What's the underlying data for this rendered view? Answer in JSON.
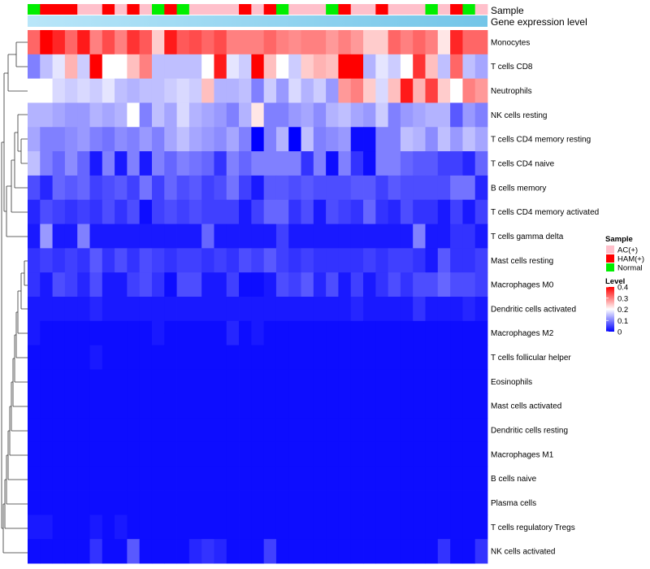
{
  "chart_data": {
    "type": "heatmap",
    "title": "",
    "annotation_titles": {
      "sample": "Sample",
      "gene_expression": "Gene expression level"
    },
    "annotation_colors": {
      "gene_expression_low": "#b9e6f9",
      "gene_expression_high": "#73c5e8"
    },
    "sample_groups": [
      "Normal",
      "HAM(+)",
      "HAM(+)",
      "HAM(+)",
      "AC(+)",
      "AC(+)",
      "HAM(+)",
      "AC(+)",
      "HAM(+)",
      "AC(+)",
      "Normal",
      "HAM(+)",
      "Normal",
      "AC(+)",
      "AC(+)",
      "AC(+)",
      "AC(+)",
      "HAM(+)",
      "AC(+)",
      "HAM(+)",
      "Normal",
      "AC(+)",
      "AC(+)",
      "AC(+)",
      "Normal",
      "HAM(+)",
      "AC(+)",
      "AC(+)",
      "HAM(+)",
      "AC(+)",
      "AC(+)",
      "AC(+)",
      "Normal",
      "AC(+)",
      "HAM(+)",
      "Normal",
      "AC(+)"
    ],
    "rows": [
      "Monocytes",
      "T cells CD8",
      "Neutrophils",
      "NK cells resting",
      "T cells CD4 memory resting",
      "T cells CD4 naive",
      "B cells memory",
      "T cells CD4 memory activated",
      "T cells gamma delta",
      "Mast cells resting",
      "Macrophages M0",
      "Dendritic cells activated",
      "Macrophages M2",
      "T cells follicular helper",
      "Eosinophils",
      "Mast cells activated",
      "Dendritic cells resting",
      "Macrophages M1",
      "B cells naive",
      "Plasma cells",
      "T cells regulatory  Tregs",
      "NK cells activated"
    ],
    "values": [
      [
        0.32,
        0.4,
        0.37,
        0.32,
        0.38,
        0.3,
        0.34,
        0.3,
        0.36,
        0.33,
        0.24,
        0.38,
        0.33,
        0.34,
        0.32,
        0.34,
        0.3,
        0.3,
        0.3,
        0.32,
        0.3,
        0.29,
        0.3,
        0.3,
        0.28,
        0.3,
        0.28,
        0.24,
        0.24,
        0.32,
        0.3,
        0.32,
        0.3,
        0.22,
        0.37,
        0.32,
        0.32
      ],
      [
        0.1,
        0.15,
        0.18,
        0.26,
        0.16,
        0.4,
        0.2,
        0.2,
        0.25,
        0.3,
        0.15,
        0.15,
        0.15,
        0.15,
        0.2,
        0.38,
        0.18,
        0.16,
        0.4,
        0.25,
        0.2,
        0.16,
        0.24,
        0.26,
        0.25,
        0.4,
        0.4,
        0.14,
        0.18,
        0.16,
        0.2,
        0.36,
        0.25,
        0.15,
        0.32,
        0.15,
        0.13
      ],
      [
        0.2,
        0.2,
        0.17,
        0.16,
        0.17,
        0.16,
        0.18,
        0.15,
        0.14,
        0.15,
        0.15,
        0.16,
        0.17,
        0.16,
        0.25,
        0.14,
        0.14,
        0.15,
        0.1,
        0.16,
        0.12,
        0.17,
        0.14,
        0.16,
        0.12,
        0.28,
        0.3,
        0.24,
        0.17,
        0.25,
        0.38,
        0.26,
        0.35,
        0.24,
        0.2,
        0.3,
        0.28
      ],
      [
        0.14,
        0.14,
        0.13,
        0.12,
        0.12,
        0.14,
        0.13,
        0.14,
        0.2,
        0.1,
        0.15,
        0.13,
        0.17,
        0.14,
        0.13,
        0.12,
        0.1,
        0.14,
        0.22,
        0.1,
        0.1,
        0.12,
        0.13,
        0.11,
        0.14,
        0.15,
        0.13,
        0.12,
        0.16,
        0.1,
        0.12,
        0.13,
        0.14,
        0.14,
        0.07,
        0.12,
        0.1
      ],
      [
        0.13,
        0.1,
        0.1,
        0.11,
        0.12,
        0.1,
        0.09,
        0.11,
        0.1,
        0.12,
        0.1,
        0.13,
        0.15,
        0.13,
        0.12,
        0.11,
        0.13,
        0.1,
        0.0,
        0.1,
        0.14,
        0.0,
        0.15,
        0.1,
        0.11,
        0.12,
        0.01,
        0.01,
        0.1,
        0.1,
        0.15,
        0.14,
        0.11,
        0.15,
        0.12,
        0.15,
        0.13
      ],
      [
        0.15,
        0.1,
        0.08,
        0.11,
        0.08,
        0.02,
        0.1,
        0.02,
        0.1,
        0.02,
        0.1,
        0.08,
        0.1,
        0.09,
        0.08,
        0.04,
        0.1,
        0.08,
        0.1,
        0.1,
        0.1,
        0.1,
        0.04,
        0.1,
        0.01,
        0.1,
        0.04,
        0.01,
        0.1,
        0.1,
        0.08,
        0.07,
        0.07,
        0.05,
        0.05,
        0.03,
        0.08
      ],
      [
        0.06,
        0.03,
        0.08,
        0.07,
        0.08,
        0.05,
        0.06,
        0.07,
        0.05,
        0.09,
        0.05,
        0.08,
        0.06,
        0.07,
        0.05,
        0.06,
        0.09,
        0.05,
        0.02,
        0.07,
        0.07,
        0.06,
        0.07,
        0.06,
        0.06,
        0.06,
        0.07,
        0.07,
        0.05,
        0.07,
        0.06,
        0.06,
        0.06,
        0.06,
        0.09,
        0.09,
        0.03
      ],
      [
        0.03,
        0.06,
        0.05,
        0.04,
        0.05,
        0.04,
        0.06,
        0.04,
        0.06,
        0.01,
        0.05,
        0.06,
        0.05,
        0.06,
        0.05,
        0.05,
        0.05,
        0.02,
        0.05,
        0.08,
        0.08,
        0.04,
        0.06,
        0.02,
        0.06,
        0.05,
        0.04,
        0.08,
        0.04,
        0.03,
        0.06,
        0.04,
        0.04,
        0.02,
        0.05,
        0.02,
        0.05
      ],
      [
        0.02,
        0.12,
        0.02,
        0.02,
        0.1,
        0.02,
        0.02,
        0.02,
        0.02,
        0.02,
        0.02,
        0.02,
        0.02,
        0.02,
        0.08,
        0.02,
        0.02,
        0.02,
        0.02,
        0.02,
        0.05,
        0.02,
        0.02,
        0.02,
        0.02,
        0.02,
        0.02,
        0.02,
        0.02,
        0.02,
        0.02,
        0.1,
        0.02,
        0.02,
        0.04,
        0.04,
        0.02
      ],
      [
        0.04,
        0.05,
        0.04,
        0.05,
        0.04,
        0.07,
        0.04,
        0.06,
        0.04,
        0.06,
        0.05,
        0.04,
        0.05,
        0.05,
        0.04,
        0.05,
        0.04,
        0.06,
        0.05,
        0.07,
        0.05,
        0.04,
        0.05,
        0.04,
        0.04,
        0.04,
        0.04,
        0.05,
        0.04,
        0.05,
        0.05,
        0.04,
        0.02,
        0.07,
        0.04,
        0.04,
        0.05
      ],
      [
        0.04,
        0.02,
        0.06,
        0.05,
        0.03,
        0.06,
        0.02,
        0.02,
        0.05,
        0.06,
        0.04,
        0.01,
        0.06,
        0.06,
        0.02,
        0.02,
        0.05,
        0.01,
        0.01,
        0.02,
        0.06,
        0.05,
        0.07,
        0.03,
        0.06,
        0.02,
        0.05,
        0.02,
        0.04,
        0.06,
        0.04,
        0.06,
        0.06,
        0.08,
        0.06,
        0.06,
        0.05
      ],
      [
        0.02,
        0.02,
        0.02,
        0.02,
        0.02,
        0.03,
        0.02,
        0.02,
        0.02,
        0.02,
        0.02,
        0.02,
        0.02,
        0.02,
        0.02,
        0.02,
        0.02,
        0.02,
        0.02,
        0.02,
        0.02,
        0.02,
        0.02,
        0.02,
        0.02,
        0.02,
        0.03,
        0.02,
        0.02,
        0.02,
        0.02,
        0.04,
        0.02,
        0.02,
        0.02,
        0.03,
        0.02
      ],
      [
        0.02,
        0.01,
        0.01,
        0.01,
        0.01,
        0.01,
        0.01,
        0.01,
        0.01,
        0.01,
        0.02,
        0.01,
        0.01,
        0.01,
        0.01,
        0.01,
        0.03,
        0.01,
        0.02,
        0.01,
        0.01,
        0.01,
        0.01,
        0.01,
        0.01,
        0.01,
        0.01,
        0.01,
        0.01,
        0.01,
        0.01,
        0.01,
        0.01,
        0.01,
        0.01,
        0.01,
        0.01
      ],
      [
        0.01,
        0.01,
        0.01,
        0.01,
        0.01,
        0.02,
        0.01,
        0.01,
        0.01,
        0.01,
        0.01,
        0.01,
        0.01,
        0.01,
        0.01,
        0.01,
        0.01,
        0.01,
        0.01,
        0.01,
        0.01,
        0.01,
        0.01,
        0.01,
        0.01,
        0.01,
        0.01,
        0.01,
        0.01,
        0.01,
        0.01,
        0.01,
        0.01,
        0.01,
        0.01,
        0.01,
        0.01
      ],
      [
        0.01,
        0.01,
        0.01,
        0.01,
        0.01,
        0.01,
        0.01,
        0.01,
        0.01,
        0.01,
        0.01,
        0.01,
        0.01,
        0.01,
        0.01,
        0.01,
        0.01,
        0.01,
        0.01,
        0.01,
        0.01,
        0.01,
        0.01,
        0.01,
        0.01,
        0.01,
        0.01,
        0.01,
        0.01,
        0.01,
        0.01,
        0.01,
        0.01,
        0.01,
        0.01,
        0.01,
        0.01
      ],
      [
        0.01,
        0.01,
        0.01,
        0.01,
        0.01,
        0.01,
        0.01,
        0.01,
        0.01,
        0.01,
        0.01,
        0.01,
        0.01,
        0.01,
        0.01,
        0.01,
        0.01,
        0.01,
        0.01,
        0.01,
        0.01,
        0.01,
        0.01,
        0.01,
        0.01,
        0.01,
        0.01,
        0.01,
        0.01,
        0.01,
        0.01,
        0.01,
        0.01,
        0.01,
        0.01,
        0.01,
        0.01
      ],
      [
        0.01,
        0.01,
        0.01,
        0.01,
        0.01,
        0.01,
        0.01,
        0.01,
        0.01,
        0.01,
        0.01,
        0.01,
        0.01,
        0.01,
        0.01,
        0.01,
        0.01,
        0.01,
        0.01,
        0.01,
        0.01,
        0.01,
        0.01,
        0.01,
        0.01,
        0.01,
        0.01,
        0.01,
        0.01,
        0.01,
        0.01,
        0.01,
        0.01,
        0.01,
        0.01,
        0.01,
        0.01
      ],
      [
        0.01,
        0.01,
        0.01,
        0.01,
        0.01,
        0.01,
        0.01,
        0.01,
        0.01,
        0.01,
        0.01,
        0.01,
        0.01,
        0.01,
        0.01,
        0.01,
        0.01,
        0.01,
        0.01,
        0.01,
        0.01,
        0.01,
        0.01,
        0.01,
        0.01,
        0.01,
        0.01,
        0.01,
        0.01,
        0.01,
        0.01,
        0.01,
        0.01,
        0.01,
        0.01,
        0.01,
        0.01
      ],
      [
        0.01,
        0.01,
        0.01,
        0.01,
        0.01,
        0.01,
        0.01,
        0.01,
        0.01,
        0.01,
        0.01,
        0.01,
        0.01,
        0.01,
        0.01,
        0.01,
        0.01,
        0.01,
        0.01,
        0.01,
        0.01,
        0.01,
        0.01,
        0.01,
        0.01,
        0.01,
        0.01,
        0.01,
        0.01,
        0.01,
        0.01,
        0.01,
        0.01,
        0.01,
        0.01,
        0.01,
        0.01
      ],
      [
        0.01,
        0.01,
        0.01,
        0.01,
        0.01,
        0.01,
        0.01,
        0.01,
        0.01,
        0.01,
        0.01,
        0.01,
        0.01,
        0.01,
        0.01,
        0.01,
        0.01,
        0.01,
        0.01,
        0.01,
        0.01,
        0.01,
        0.01,
        0.01,
        0.01,
        0.01,
        0.01,
        0.01,
        0.01,
        0.01,
        0.01,
        0.01,
        0.01,
        0.01,
        0.01,
        0.01,
        0.01
      ],
      [
        0.02,
        0.02,
        0.01,
        0.01,
        0.01,
        0.02,
        0.01,
        0.02,
        0.01,
        0.01,
        0.01,
        0.01,
        0.01,
        0.01,
        0.01,
        0.01,
        0.01,
        0.01,
        0.01,
        0.01,
        0.01,
        0.01,
        0.01,
        0.01,
        0.01,
        0.01,
        0.01,
        0.01,
        0.01,
        0.01,
        0.01,
        0.01,
        0.01,
        0.01,
        0.01,
        0.01,
        0.01
      ],
      [
        0.01,
        0.01,
        0.01,
        0.01,
        0.01,
        0.04,
        0.01,
        0.01,
        0.07,
        0.01,
        0.01,
        0.01,
        0.01,
        0.03,
        0.04,
        0.03,
        0.01,
        0.01,
        0.01,
        0.05,
        0.01,
        0.01,
        0.01,
        0.01,
        0.01,
        0.01,
        0.01,
        0.01,
        0.01,
        0.01,
        0.01,
        0.01,
        0.01,
        0.04,
        0.01,
        0.01,
        0.04
      ]
    ],
    "legend": {
      "sample_title": "Sample",
      "sample_entries": [
        {
          "label": "AC(+)",
          "color": "#ffc0cb"
        },
        {
          "label": "HAM(+)",
          "color": "#ff0000"
        },
        {
          "label": "Normal",
          "color": "#00ee00"
        }
      ],
      "level_title": "Level",
      "level_ticks": [
        "0.4",
        "0.3",
        "0.2",
        "0.1",
        "0"
      ],
      "level_range": [
        0,
        0.4
      ],
      "colors": {
        "low": "#0000ff",
        "mid": "#ffffff",
        "high": "#ff0000"
      }
    }
  }
}
